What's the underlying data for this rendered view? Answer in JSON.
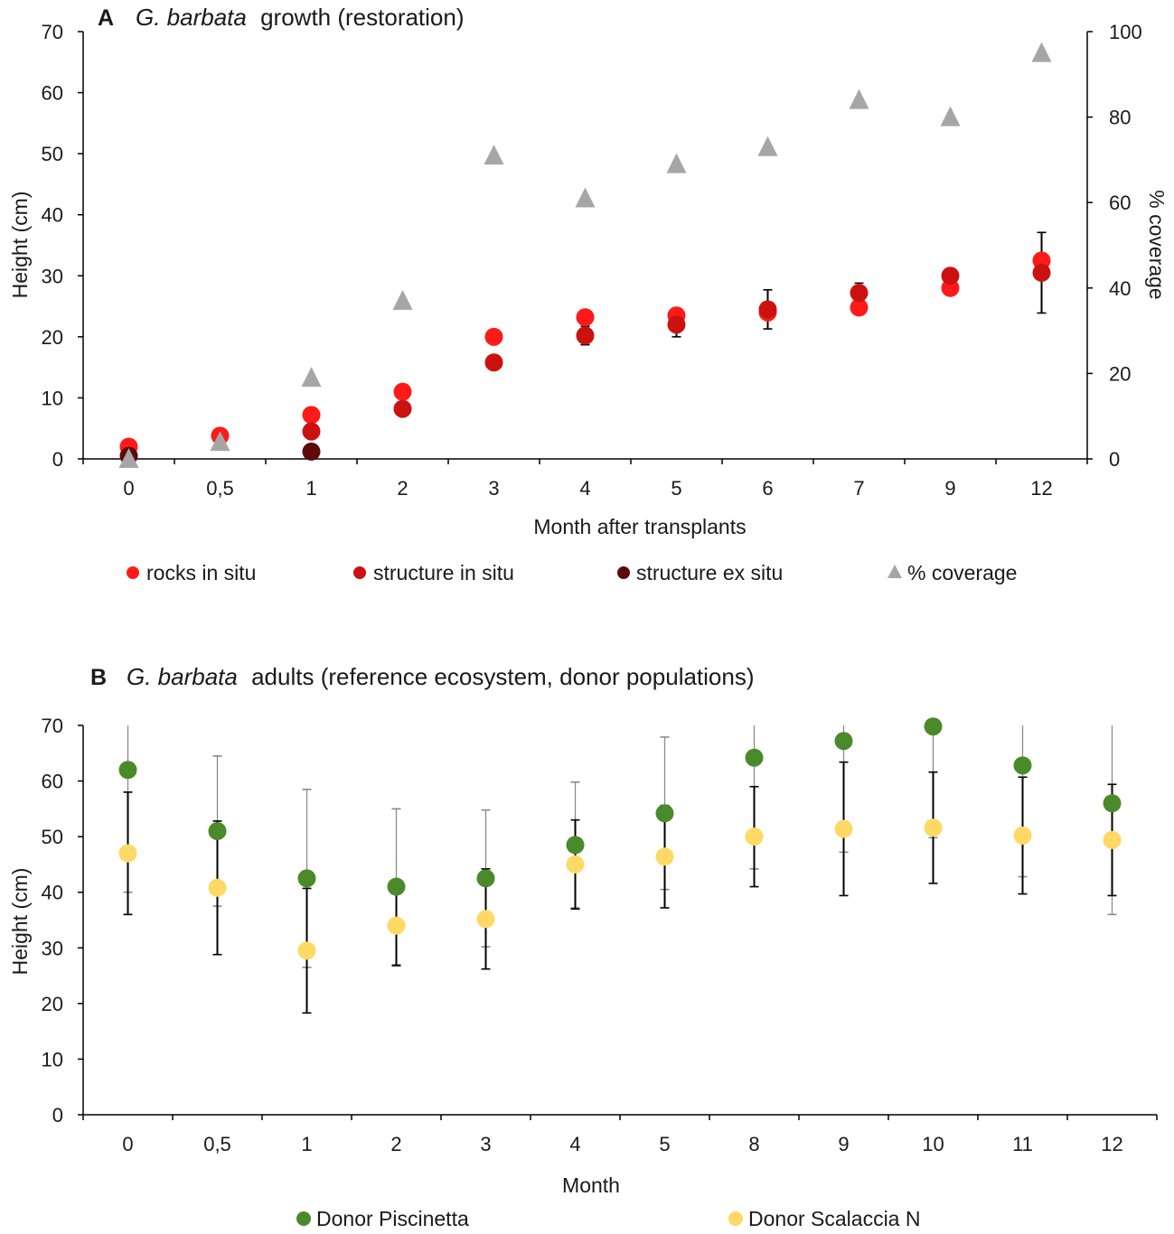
{
  "chart_data": [
    {
      "panel_label": "A",
      "type": "scatter",
      "title_species": "G. barbata",
      "title_rest": "growth (restoration)",
      "xlabel": "Month after transplants",
      "ylabel": "Height (cm)",
      "y2label": "% coverage",
      "ylim": [
        0,
        70
      ],
      "yticks": [
        0,
        10,
        20,
        30,
        40,
        50,
        60,
        70
      ],
      "y2lim": [
        0,
        100
      ],
      "y2ticks": [
        0,
        20,
        40,
        60,
        80,
        100
      ],
      "categories": [
        "0",
        "0,5",
        "1",
        "2",
        "3",
        "4",
        "5",
        "6",
        "7",
        "9",
        "12"
      ],
      "series": [
        {
          "name": "rocks in situ",
          "axis": "left",
          "marker": "circle",
          "color": "#ff1a1a",
          "values": [
            2.0,
            3.8,
            7.2,
            11.0,
            20.0,
            23.2,
            23.5,
            24.0,
            24.8,
            28.0,
            32.5
          ],
          "errors": [
            0,
            0,
            0,
            0,
            0,
            0,
            0,
            0,
            0,
            0,
            0
          ]
        },
        {
          "name": "structure in situ",
          "axis": "left",
          "marker": "circle",
          "color": "#cc1111",
          "values": [
            null,
            null,
            4.5,
            8.2,
            15.8,
            20.2,
            22.0,
            24.5,
            27.2,
            30.0,
            30.5
          ],
          "errors": [
            0,
            0,
            0,
            0,
            0,
            1.5,
            2.0,
            3.2,
            1.6,
            0,
            6.6
          ]
        },
        {
          "name": "structure ex situ",
          "axis": "left",
          "marker": "circle",
          "color": "#5c0a0a",
          "values": [
            0.5,
            null,
            1.2,
            null,
            null,
            null,
            null,
            null,
            null,
            null,
            null
          ],
          "errors": [
            0,
            0,
            0,
            0,
            0,
            0,
            0,
            0,
            0,
            0,
            0
          ]
        },
        {
          "name": "% coverage",
          "axis": "right",
          "marker": "triangle",
          "color": "#a6a6a6",
          "values": [
            0,
            4,
            19,
            37,
            71,
            61,
            69,
            73,
            84,
            80,
            95
          ],
          "errors": [
            0,
            0,
            0,
            0,
            0,
            0,
            0,
            0,
            0,
            0,
            0
          ]
        }
      ]
    },
    {
      "panel_label": "B",
      "type": "scatter",
      "title_species": "G. barbata",
      "title_rest": "adults (reference ecosystem, donor populations)",
      "xlabel": "Month",
      "ylabel": "Height (cm)",
      "ylim": [
        0,
        70
      ],
      "yticks": [
        0,
        10,
        20,
        30,
        40,
        50,
        60,
        70
      ],
      "categories": [
        "0",
        "0,5",
        "1",
        "2",
        "3",
        "4",
        "5",
        "8",
        "9",
        "10",
        "11",
        "12"
      ],
      "series": [
        {
          "name": "Donor Piscinetta",
          "marker": "circle",
          "color": "#4a8a2a",
          "values": [
            62,
            51,
            42.5,
            41,
            42.5,
            48.5,
            54.2,
            64.2,
            67.2,
            69.8,
            62.8,
            56
          ],
          "errors": [
            22,
            13.5,
            16,
            14,
            12.3,
            11.3,
            13.7,
            20,
            20,
            20,
            20,
            20
          ]
        },
        {
          "name": "Donor Scalaccia N",
          "marker": "circle",
          "color": "#ffd966",
          "values": [
            47,
            40.8,
            29.5,
            34,
            35.2,
            45,
            46.4,
            50,
            51.4,
            51.6,
            50.2,
            49.4
          ],
          "errors": [
            11,
            12,
            11.2,
            7.2,
            9,
            8,
            9.2,
            9,
            12,
            10,
            10.5,
            10
          ]
        }
      ]
    }
  ]
}
